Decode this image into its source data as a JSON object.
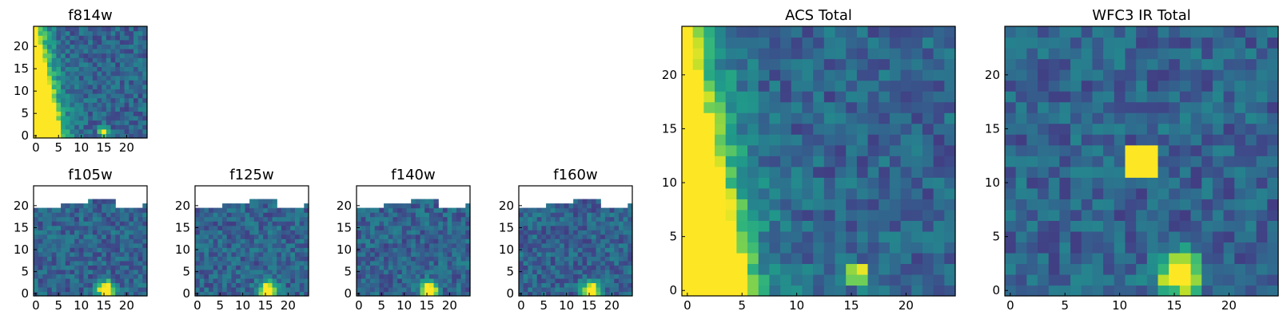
{
  "chart_data": [
    {
      "type": "heatmap",
      "title": "f814w",
      "xticks": [
        "0",
        "5",
        "10",
        "15",
        "20"
      ],
      "yticks": [
        "0",
        "5",
        "10",
        "15",
        "20"
      ],
      "xlim": [
        0,
        25
      ],
      "ylim": [
        0,
        25
      ],
      "colormap": "viridis",
      "features": {
        "streak": true,
        "source": {
          "x": 15.5,
          "y": 1.5
        },
        "blank_top_rows": 0
      }
    },
    {
      "type": "heatmap",
      "title": "f105w",
      "xticks": [
        "0",
        "5",
        "10",
        "15",
        "20"
      ],
      "yticks": [
        "0",
        "5",
        "10",
        "15",
        "20"
      ],
      "xlim": [
        0,
        25
      ],
      "ylim": [
        0,
        25
      ],
      "colormap": "viridis",
      "features": {
        "streak": false,
        "source": {
          "x": 16,
          "y": 1.5
        },
        "blank_top_rows": 5
      }
    },
    {
      "type": "heatmap",
      "title": "f125w",
      "xticks": [
        "0",
        "5",
        "10",
        "15",
        "20"
      ],
      "yticks": [
        "0",
        "5",
        "10",
        "15",
        "20"
      ],
      "xlim": [
        0,
        25
      ],
      "ylim": [
        0,
        25
      ],
      "colormap": "viridis",
      "features": {
        "streak": false,
        "source": {
          "x": 16,
          "y": 1.5
        },
        "blank_top_rows": 5
      }
    },
    {
      "type": "heatmap",
      "title": "f140w",
      "xticks": [
        "0",
        "5",
        "10",
        "15",
        "20"
      ],
      "yticks": [
        "0",
        "5",
        "10",
        "15",
        "20"
      ],
      "xlim": [
        0,
        25
      ],
      "ylim": [
        0,
        25
      ],
      "colormap": "viridis",
      "features": {
        "streak": false,
        "source": {
          "x": 16,
          "y": 1.5
        },
        "blank_top_rows": 5
      }
    },
    {
      "type": "heatmap",
      "title": "f160w",
      "xticks": [
        "0",
        "5",
        "10",
        "15",
        "20"
      ],
      "yticks": [
        "0",
        "5",
        "10",
        "15",
        "20"
      ],
      "xlim": [
        0,
        25
      ],
      "ylim": [
        0,
        25
      ],
      "colormap": "viridis",
      "features": {
        "streak": false,
        "source": {
          "x": 16,
          "y": 1.5
        },
        "blank_top_rows": 5
      }
    },
    {
      "type": "heatmap",
      "title": "ACS Total",
      "xticks": [
        "0",
        "5",
        "10",
        "15",
        "20"
      ],
      "yticks": [
        "0",
        "5",
        "10",
        "15",
        "20"
      ],
      "xlim": [
        0,
        25
      ],
      "ylim": [
        0,
        25
      ],
      "colormap": "viridis",
      "features": {
        "streak": true,
        "source": {
          "x": 16,
          "y": 2
        },
        "blank_top_rows": 0
      }
    },
    {
      "type": "heatmap",
      "title": "WFC3 IR Total",
      "xticks": [
        "0",
        "5",
        "10",
        "15",
        "20"
      ],
      "yticks": [
        "0",
        "5",
        "10",
        "15",
        "20"
      ],
      "xlim": [
        0,
        25
      ],
      "ylim": [
        0,
        25
      ],
      "colormap": "viridis",
      "features": {
        "streak": false,
        "source": {
          "x": 16,
          "y": 2
        },
        "hotspot": {
          "x": 12.5,
          "y": 12.5
        },
        "blank_top_rows": 0
      }
    }
  ]
}
